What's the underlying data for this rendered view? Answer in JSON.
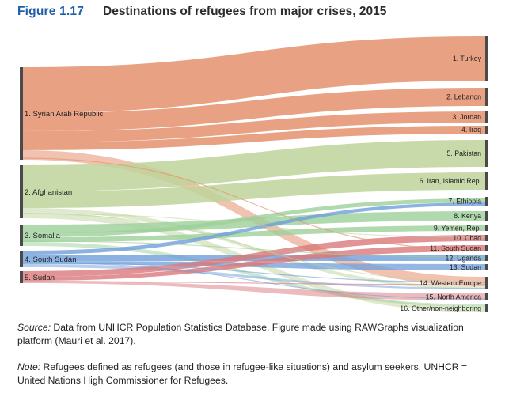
{
  "figure": {
    "number": "Figure 1.17",
    "title": "Destinations of refugees from major crises, 2015",
    "number_color": "#1f5fa8"
  },
  "diagram": {
    "type": "sankey",
    "sources": [
      {
        "label": "1. Syrian Arab Republic",
        "color": "#e5906f"
      },
      {
        "label": "2. Afghanistan",
        "color": "#bed39b"
      },
      {
        "label": "3. Somalia",
        "color": "#9ccf9a"
      },
      {
        "label": "4. South Sudan",
        "color": "#6f9fdb"
      },
      {
        "label": "5. Sudan",
        "color": "#d9787b"
      }
    ],
    "destinations": [
      {
        "label": "1. Turkey"
      },
      {
        "label": "2. Lebanon"
      },
      {
        "label": "3. Jordan"
      },
      {
        "label": "4. Iraq"
      },
      {
        "label": "5. Pakistan"
      },
      {
        "label": "6. Iran, Islamic Rep."
      },
      {
        "label": "7. Ethiopia"
      },
      {
        "label": "8. Kenya"
      },
      {
        "label": "9. Yemen, Rep."
      },
      {
        "label": "10. Chad"
      },
      {
        "label": "11. South Sudan"
      },
      {
        "label": "12. Uganda"
      },
      {
        "label": "13. Sudan"
      },
      {
        "label": "14. Western Europe"
      },
      {
        "label": "15. North America"
      },
      {
        "label": "16. Other/non-neighboring"
      }
    ],
    "node_color": "#4a4a4a"
  },
  "source_note": {
    "label": "Source:",
    "text": " Data from UNHCR Population Statistics Database. Figure made using RAWGraphs visualization platform (Mauri et al. 2017)."
  },
  "note": {
    "label": "Note:",
    "text": " Refugees defined as refugees (and those in refugee-like situations) and asylum seekers. UNHCR = United Nations High Commissioner for Refugees."
  }
}
